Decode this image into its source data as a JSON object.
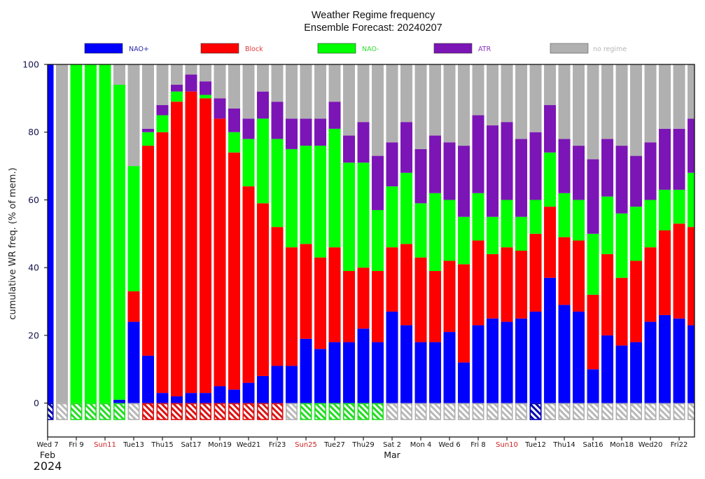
{
  "chart_data": {
    "type": "bar",
    "stacked": true,
    "title": "Weather Regime frequency",
    "subtitle": "Ensemble Forecast: 20240207",
    "xlabel": "",
    "ylabel": "cumulative WR freq. (% of mem.)",
    "ylim": [
      -10,
      100
    ],
    "xlim": [
      0,
      45.07
    ],
    "yticks": [
      0,
      20,
      40,
      60,
      80,
      100
    ],
    "grid": false,
    "legend": "top",
    "x": [
      0,
      1,
      2,
      3,
      4,
      5,
      6,
      7,
      8,
      9,
      10,
      11,
      12,
      13,
      14,
      15,
      16,
      17,
      18,
      19,
      20,
      21,
      22,
      23,
      24,
      25,
      26,
      27,
      28,
      29,
      30,
      31,
      32,
      33,
      34,
      35,
      36,
      37,
      38,
      39,
      40,
      41,
      42,
      43,
      44,
      45
    ],
    "series": [
      {
        "name": "NAO+",
        "color": "#0000ff",
        "edge_color": "#0000b0",
        "label_color": "#2a2aa8",
        "values": [
          100,
          0,
          0,
          0,
          0,
          1,
          24,
          14,
          3,
          2,
          3,
          3,
          5,
          4,
          6,
          8,
          11,
          11,
          19,
          16,
          18,
          18,
          22,
          18,
          27,
          23,
          18,
          18,
          21,
          12,
          23,
          25,
          24,
          25,
          27,
          37,
          29,
          27,
          10,
          20,
          17,
          18,
          24,
          26,
          25,
          23
        ]
      },
      {
        "name": "Block",
        "color": "#ff0000",
        "edge_color": "#dd1111",
        "label_color": "#e03a3a",
        "values": [
          0,
          0,
          0,
          0,
          0,
          0,
          9,
          62,
          77,
          87,
          89,
          87,
          79,
          70,
          58,
          51,
          41,
          35,
          28,
          27,
          28,
          21,
          18,
          21,
          19,
          24,
          25,
          21,
          21,
          29,
          25,
          19,
          22,
          20,
          23,
          21,
          20,
          21,
          22,
          24,
          20,
          24,
          22,
          25,
          28,
          29
        ]
      },
      {
        "name": "NAO-",
        "color": "#00ff00",
        "edge_color": "#22dd22",
        "label_color": "#33dd33",
        "values": [
          0,
          0,
          100,
          100,
          100,
          93,
          37,
          4,
          5,
          3,
          0,
          1,
          0,
          6,
          14,
          25,
          26,
          29,
          29,
          33,
          35,
          32,
          31,
          18,
          18,
          21,
          16,
          23,
          18,
          14,
          14,
          11,
          14,
          10,
          10,
          16,
          13,
          12,
          18,
          17,
          19,
          16,
          14,
          12,
          10,
          16
        ]
      },
      {
        "name": "ATR",
        "color": "#7b15b5",
        "edge_color": "#5e0f8c",
        "label_color": "#8a2fb8",
        "values": [
          0,
          0,
          0,
          0,
          0,
          0,
          0,
          1,
          3,
          2,
          5,
          4,
          6,
          7,
          6,
          8,
          11,
          9,
          8,
          8,
          8,
          8,
          12,
          16,
          13,
          15,
          16,
          17,
          17,
          21,
          23,
          27,
          23,
          23,
          20,
          14,
          16,
          16,
          22,
          17,
          20,
          15,
          17,
          18,
          18,
          16
        ]
      },
      {
        "name": "no regime",
        "color": "#b0b0b0",
        "edge_color": "#b0b0b0",
        "label_color": "#b5b5b5",
        "values": [
          0,
          100,
          0,
          0,
          0,
          6,
          30,
          19,
          12,
          6,
          3,
          5,
          10,
          13,
          16,
          8,
          11,
          16,
          16,
          16,
          11,
          21,
          17,
          27,
          23,
          17,
          25,
          21,
          23,
          24,
          15,
          18,
          17,
          22,
          20,
          12,
          22,
          24,
          28,
          22,
          24,
          27,
          23,
          19,
          19,
          16
        ]
      }
    ],
    "dominant_regime": [
      "NAO+",
      "no regime",
      "NAO-",
      "NAO-",
      "NAO-",
      "NAO-",
      "no regime",
      "Block",
      "Block",
      "Block",
      "Block",
      "Block",
      "Block",
      "Block",
      "Block",
      "Block",
      "Block",
      "no regime",
      "NAO-",
      "NAO-",
      "NAO-",
      "NAO-",
      "NAO-",
      "NAO-",
      "no regime",
      "no regime",
      "no regime",
      "no regime",
      "no regime",
      "no regime",
      "no regime",
      "no regime",
      "no regime",
      "no regime",
      "NAO+",
      "no regime",
      "no regime",
      "no regime",
      "no regime",
      "no regime",
      "no regime",
      "no regime",
      "no regime",
      "no regime",
      "no regime",
      "no regime"
    ],
    "dominant_lower": -5,
    "xticks": [
      {
        "x": 0,
        "label": "Wed 7",
        "is_sunday": false
      },
      {
        "x": 2,
        "label": "Fri 9",
        "is_sunday": false
      },
      {
        "x": 4,
        "label": "Sun11",
        "is_sunday": true
      },
      {
        "x": 6,
        "label": "Tue13",
        "is_sunday": false
      },
      {
        "x": 8,
        "label": "Thu15",
        "is_sunday": false
      },
      {
        "x": 10,
        "label": "Sat17",
        "is_sunday": false
      },
      {
        "x": 12,
        "label": "Mon19",
        "is_sunday": false
      },
      {
        "x": 14,
        "label": "Wed21",
        "is_sunday": false
      },
      {
        "x": 16,
        "label": "Fri23",
        "is_sunday": false
      },
      {
        "x": 18,
        "label": "Sun25",
        "is_sunday": true
      },
      {
        "x": 20,
        "label": "Tue27",
        "is_sunday": false
      },
      {
        "x": 22,
        "label": "Thu29",
        "is_sunday": false
      },
      {
        "x": 24,
        "label": "Sat 2",
        "is_sunday": false
      },
      {
        "x": 26,
        "label": "Mon 4",
        "is_sunday": false
      },
      {
        "x": 28,
        "label": "Wed 6",
        "is_sunday": false
      },
      {
        "x": 30,
        "label": "Fri 8",
        "is_sunday": false
      },
      {
        "x": 32,
        "label": "Sun10",
        "is_sunday": true
      },
      {
        "x": 34,
        "label": "Tue12",
        "is_sunday": false
      },
      {
        "x": 36,
        "label": "Thu14",
        "is_sunday": false
      },
      {
        "x": 38,
        "label": "Sat16",
        "is_sunday": false
      },
      {
        "x": 40,
        "label": "Mon18",
        "is_sunday": false
      },
      {
        "x": 42,
        "label": "Wed20",
        "is_sunday": false
      },
      {
        "x": 44,
        "label": "Fri22",
        "is_sunday": false
      }
    ],
    "month_labels": [
      {
        "x": 0,
        "label": "Feb"
      },
      {
        "x": 24,
        "label": "Mar"
      }
    ],
    "year_label": {
      "x": 0,
      "label": "2024"
    }
  }
}
